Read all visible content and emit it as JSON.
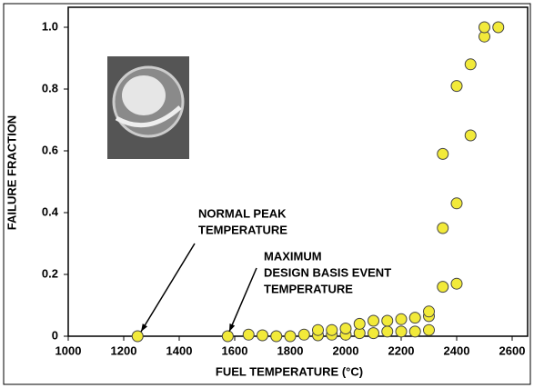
{
  "chart_data": {
    "type": "scatter",
    "xlabel": "FUEL TEMPERATURE (°C)",
    "ylabel": "FAILURE FRACTION",
    "x": [
      1250,
      1575,
      1650,
      1700,
      1750,
      1800,
      1850,
      1900,
      1900,
      1950,
      1950,
      2000,
      2000,
      2050,
      2050,
      2100,
      2100,
      2150,
      2150,
      2200,
      2200,
      2250,
      2250,
      2300,
      2300,
      2300,
      2350,
      2350,
      2350,
      2400,
      2400,
      2400,
      2450,
      2450,
      2500,
      2500,
      2550
    ],
    "values": [
      0,
      0,
      0.005,
      0.003,
      0,
      0,
      0.005,
      0.003,
      0.02,
      0.005,
      0.02,
      0.005,
      0.025,
      0.01,
      0.04,
      0.01,
      0.05,
      0.015,
      0.05,
      0.015,
      0.055,
      0.015,
      0.06,
      0.02,
      0.065,
      0.08,
      0.16,
      0.35,
      0.59,
      0.17,
      0.43,
      0.81,
      0.65,
      0.88,
      0.97,
      1.0,
      1.0
    ],
    "color": "#f2ea3a",
    "xlim": [
      1000,
      2600
    ],
    "xticks": [
      1000,
      1200,
      1400,
      1600,
      1800,
      2000,
      2200,
      2400,
      2600
    ],
    "ylim": [
      0,
      1
    ],
    "yticks": [
      0,
      0.2,
      0.4,
      0.6,
      0.8,
      {
        "value": 1,
        "label": "1.0"
      }
    ],
    "annotations": [
      {
        "lines": [
          "NORMAL PEAK",
          "TEMPERATURE"
        ]
      },
      {
        "lines": [
          "MAXIMUM",
          "DESIGN BASIS EVENT",
          "TEMPERATURE"
        ]
      }
    ]
  }
}
